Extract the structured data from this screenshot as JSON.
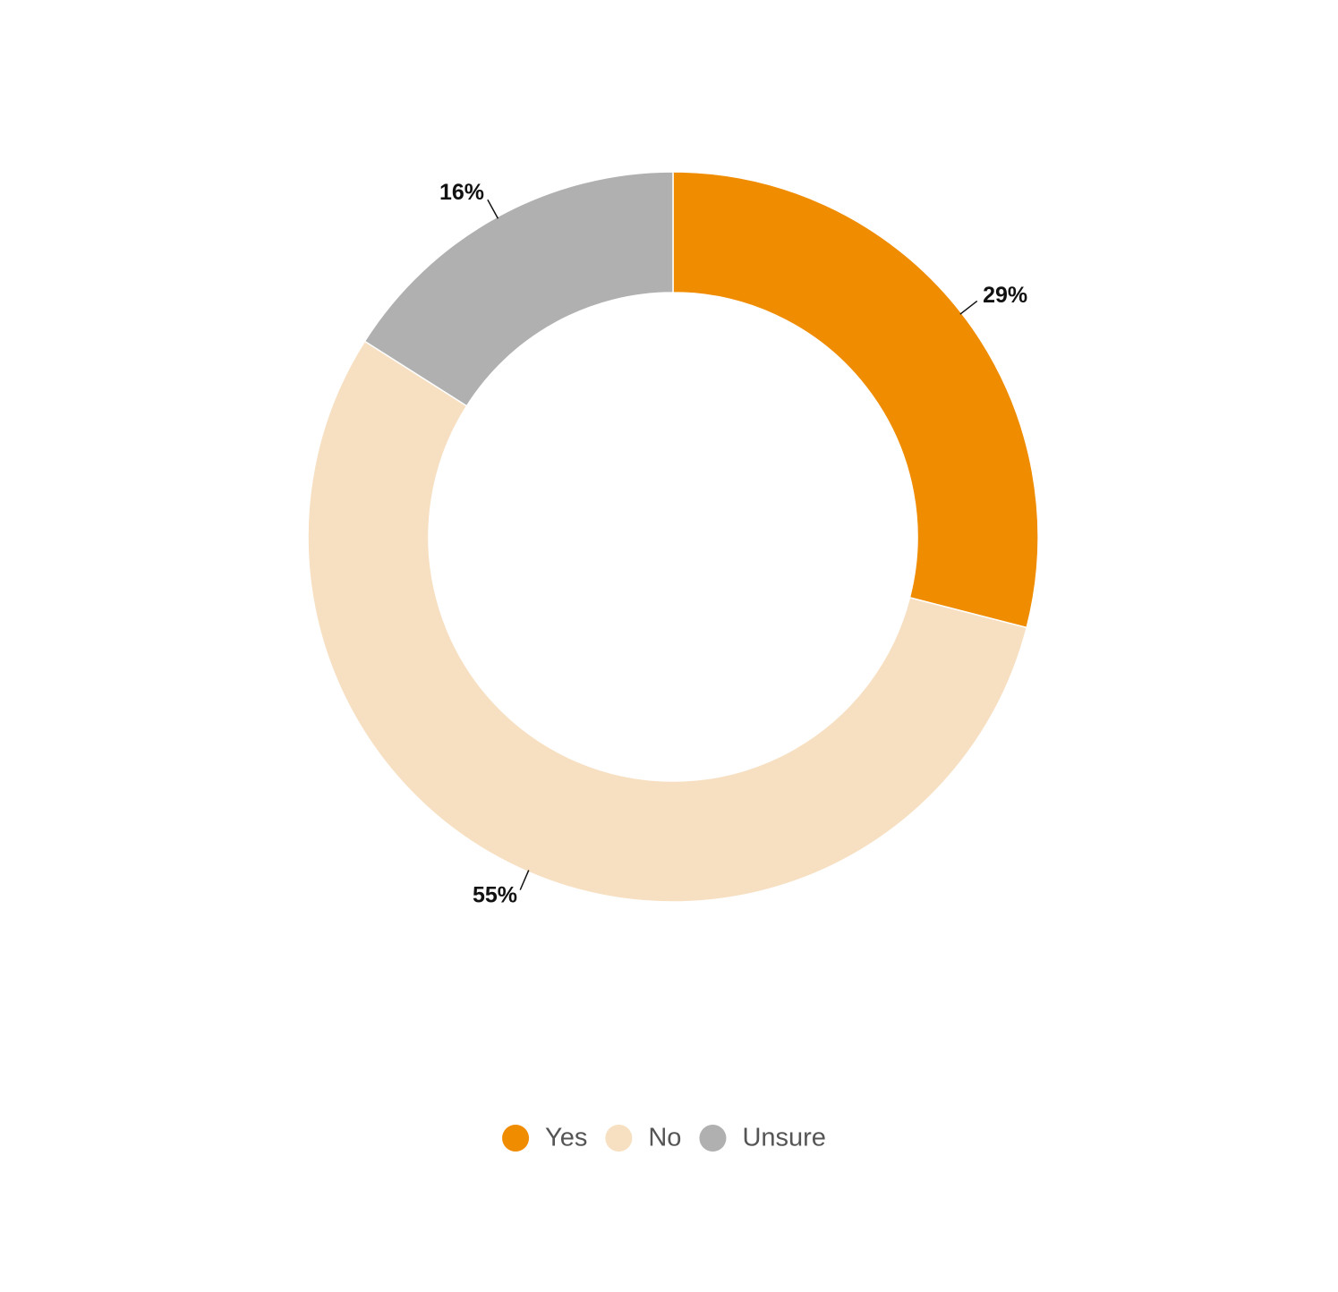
{
  "chart_data": {
    "type": "donut",
    "categories": [
      "Yes",
      "No",
      "Unsure"
    ],
    "values": [
      29,
      55,
      16
    ],
    "value_labels": [
      "29%",
      "55%",
      "16%"
    ],
    "colors": [
      "#f08c00",
      "#f7dfc1",
      "#b0b0b0"
    ],
    "legend": "bottom"
  }
}
